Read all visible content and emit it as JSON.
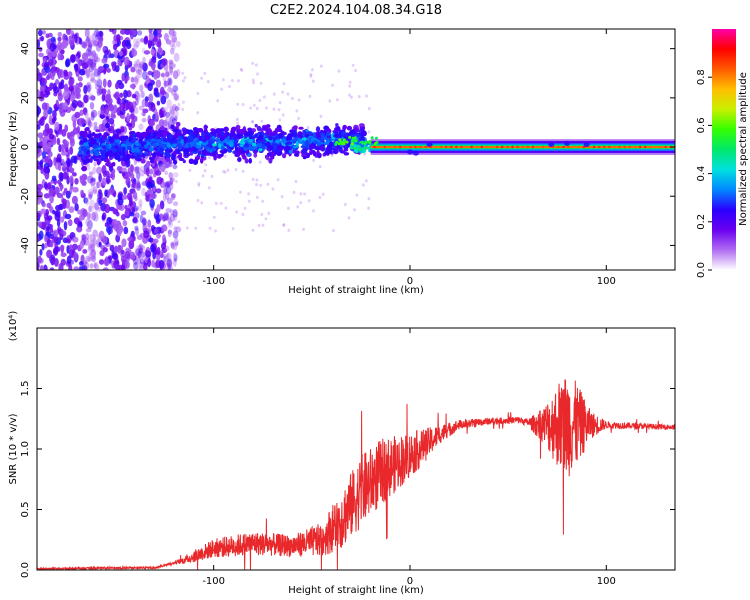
{
  "title": "C2E2.2024.104.08.34.G18",
  "chart_data": [
    {
      "type": "heatmap",
      "xlabel": "Height of straight line (km)",
      "ylabel": "Frequency (Hz)",
      "xlim": [
        -190,
        135
      ],
      "ylim": [
        -50,
        48
      ],
      "x_ticks": [
        -100,
        0,
        100
      ],
      "y_ticks": [
        -40,
        -20,
        0,
        20,
        40
      ],
      "colorbar": {
        "label": "Normalized spectral amplitude",
        "range": [
          0,
          1
        ],
        "ticks": [
          "0.0",
          "0.2",
          "0.4",
          "0.6",
          "0.8"
        ],
        "tick_values": [
          0,
          0.2,
          0.4,
          0.6,
          0.8
        ],
        "colors": [
          "#ffffff",
          "#b06cf2",
          "#6a00f0",
          "#2a00ff",
          "#0088ff",
          "#00e0e0",
          "#00e86a",
          "#33ff00",
          "#c8f000",
          "#ffbf00",
          "#ff5a00",
          "#ff0000",
          "#ff00a8"
        ]
      }
    },
    {
      "type": "line",
      "xlabel": "Height of straight line (km)",
      "ylabel": "SNR (10 * v/v)",
      "scale_label": "(x10⁴)",
      "xlim": [
        -190,
        135
      ],
      "ylim": [
        0,
        2.0
      ],
      "x_ticks": [
        -100,
        0,
        100
      ],
      "y_ticks": [
        0.0,
        0.5,
        1.0,
        1.5
      ],
      "y_tick_labels": [
        "0.0",
        "0.5",
        "1.0",
        "1.5"
      ],
      "color": "#e8282a",
      "envelope": {
        "x": [
          -190,
          -130,
          -115,
          -100,
          -80,
          -60,
          -45,
          -35,
          -25,
          -15,
          -5,
          5,
          15,
          25,
          40,
          55,
          65,
          72,
          80,
          90,
          100,
          115,
          135
        ],
        "y": [
          0.01,
          0.02,
          0.08,
          0.18,
          0.22,
          0.2,
          0.25,
          0.42,
          0.65,
          0.8,
          0.9,
          1.0,
          1.12,
          1.2,
          1.23,
          1.24,
          1.2,
          1.2,
          1.2,
          1.2,
          1.2,
          1.19,
          1.18
        ]
      },
      "noise": {
        "x": [
          -190,
          -120,
          -110,
          -100,
          -80,
          -60,
          -45,
          -35,
          -25,
          -15,
          -5,
          5,
          15,
          25,
          40,
          60,
          68,
          75,
          80,
          85,
          92,
          100,
          135
        ],
        "y": [
          0.005,
          0.01,
          0.05,
          0.08,
          0.1,
          0.09,
          0.14,
          0.25,
          0.3,
          0.28,
          0.22,
          0.16,
          0.08,
          0.04,
          0.03,
          0.03,
          0.15,
          0.35,
          0.45,
          0.35,
          0.12,
          0.03,
          0.02
        ]
      }
    }
  ]
}
